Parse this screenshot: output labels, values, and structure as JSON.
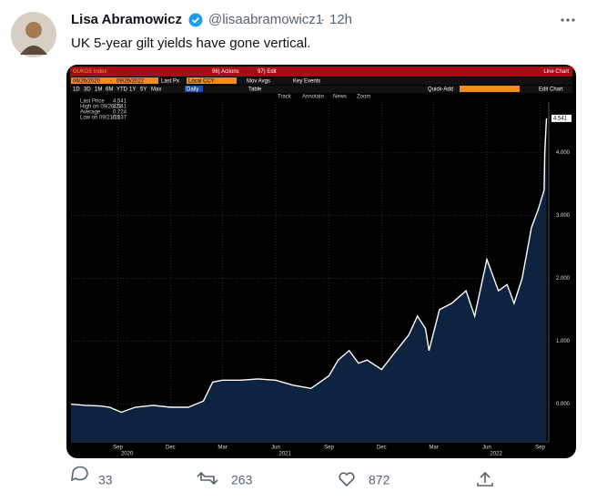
{
  "tweet": {
    "author": "Lisa Abramowicz",
    "handle": "@lisaabramowicz1",
    "separator": "·",
    "time": "12h",
    "text": "UK 5-year gilt yields have gone vertical.",
    "replies": "33",
    "retweets": "263",
    "likes": "872"
  },
  "toolbar": {
    "security": "GUKG5 Index",
    "actions": "96) Actions",
    "edit": "97) Edit",
    "view": "Line Chart",
    "start": "06/26/2020",
    "dash": "-",
    "end": "09/26/2022",
    "field": "Last Px",
    "currency": "Local CCY",
    "mov_avgs": "Mov Avgs",
    "key_events": "Key Events",
    "periods": [
      "1D",
      "3D",
      "1M",
      "6M",
      "YTD",
      "1Y",
      "5Y",
      "Max"
    ],
    "frequency": "Daily",
    "table": "Table",
    "quick_add": "Quick-Add",
    "edit_chart": "Edit Chart",
    "tools": [
      "Track",
      "Annotate",
      "News",
      "Zoom"
    ]
  },
  "chart_data": {
    "type": "area",
    "color": "#0d2340",
    "line_color": "#ffffff",
    "legend": [
      {
        "label": "Last Price",
        "value": 4.541
      },
      {
        "label": "High on 09/26/22",
        "value": 4.541
      },
      {
        "label": "Average",
        "value": 0.724
      },
      {
        "label": "Low on 09/21/20",
        "value": -0.137
      }
    ],
    "x": [
      "2020-06-26",
      "2020-07-20",
      "2020-08-15",
      "2020-09-01",
      "2020-09-21",
      "2020-10-15",
      "2020-11-15",
      "2020-12-15",
      "2021-01-15",
      "2021-02-10",
      "2021-02-26",
      "2021-03-15",
      "2021-04-15",
      "2021-05-15",
      "2021-06-15",
      "2021-07-15",
      "2021-08-15",
      "2021-09-15",
      "2021-10-01",
      "2021-10-20",
      "2021-11-05",
      "2021-11-20",
      "2021-12-15",
      "2022-01-05",
      "2022-01-31",
      "2022-02-15",
      "2022-03-01",
      "2022-03-07",
      "2022-03-25",
      "2022-04-15",
      "2022-05-10",
      "2022-05-25",
      "2022-06-15",
      "2022-07-05",
      "2022-07-20",
      "2022-08-01",
      "2022-08-15",
      "2022-08-31",
      "2022-09-12",
      "2022-09-22",
      "2022-09-23",
      "2022-09-26"
    ],
    "values": [
      0.0,
      -0.02,
      -0.03,
      -0.05,
      -0.13,
      -0.05,
      -0.02,
      -0.05,
      -0.05,
      0.05,
      0.35,
      0.38,
      0.38,
      0.4,
      0.38,
      0.3,
      0.25,
      0.45,
      0.7,
      0.85,
      0.65,
      0.7,
      0.55,
      0.8,
      1.1,
      1.4,
      1.2,
      0.85,
      1.5,
      1.6,
      1.8,
      1.4,
      2.3,
      1.8,
      1.9,
      1.6,
      2.0,
      2.8,
      3.1,
      3.4,
      4.0,
      4.541
    ],
    "xlim": [
      "2020-06-26",
      "2022-09-30"
    ],
    "ylim": [
      -0.6,
      4.8
    ],
    "yticks": [
      {
        "value": 0,
        "label": "0.000"
      },
      {
        "value": 1,
        "label": "1.000"
      },
      {
        "value": 2,
        "label": "2.000"
      },
      {
        "value": 3,
        "label": "3.000"
      },
      {
        "value": 4,
        "label": "4.000"
      }
    ],
    "xticks": [
      {
        "value": "2020-09-15",
        "label": "Sep"
      },
      {
        "value": "2020-12-15",
        "label": "Dec"
      },
      {
        "value": "2021-03-15",
        "label": "Mar"
      },
      {
        "value": "2021-06-15",
        "label": "Jun"
      },
      {
        "value": "2021-09-15",
        "label": "Sep"
      },
      {
        "value": "2021-12-15",
        "label": "Dec"
      },
      {
        "value": "2022-03-15",
        "label": "Mar"
      },
      {
        "value": "2022-06-15",
        "label": "Jun"
      },
      {
        "value": "2022-09-15",
        "label": "Sep"
      }
    ],
    "year_ticks": [
      {
        "value": "2020-10-01",
        "label": "2020"
      },
      {
        "value": "2021-07-01",
        "label": "2021"
      },
      {
        "value": "2022-07-01",
        "label": "2022"
      }
    ],
    "grid": true
  }
}
